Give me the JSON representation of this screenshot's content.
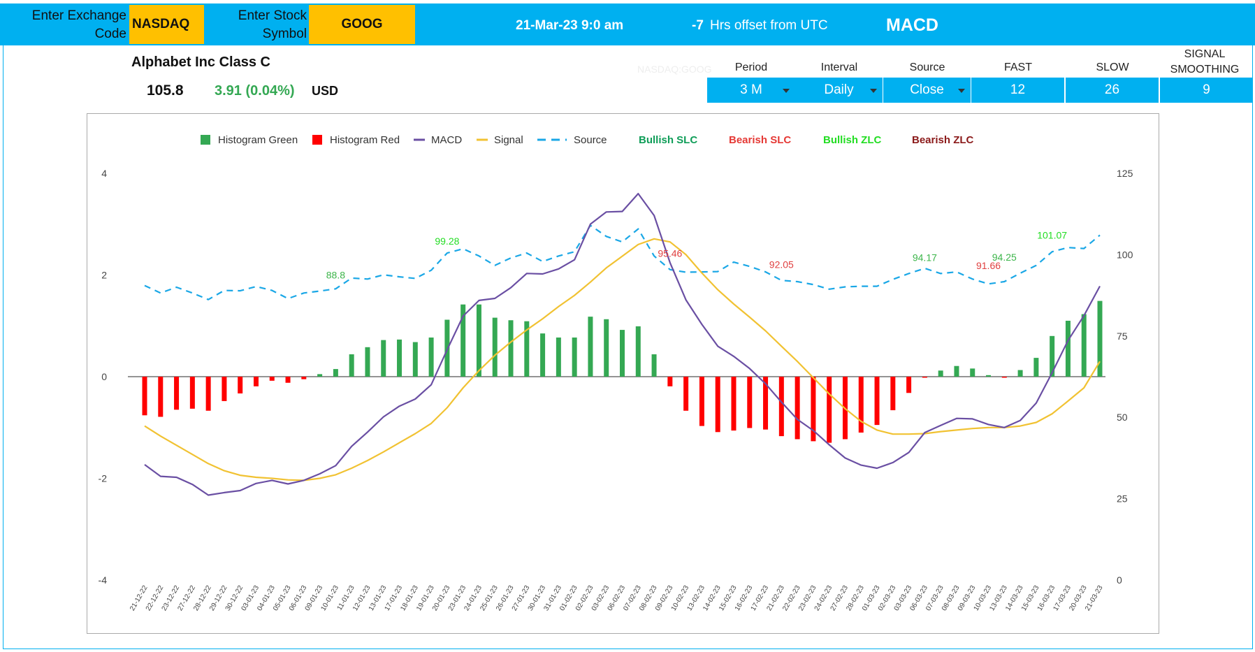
{
  "header": {
    "exchange_label": "Enter Exchange Code",
    "exchange_value": "NASDAQ",
    "symbol_label": "Enter Stock Symbol",
    "symbol_value": "GOOG",
    "datetime": "21-Mar-23 9:0 am",
    "utc_offset_value": "-7",
    "utc_offset_label": "Hrs offset from UTC",
    "title": "MACD"
  },
  "stock": {
    "name": "Alphabet Inc Class C",
    "price": "105.8",
    "change": "3.91 (0.04%)",
    "currency": "USD",
    "ticker_watermark": "NASDAQ:GOOG"
  },
  "controls": {
    "period_label": "Period",
    "period_value": "3 M",
    "interval_label": "Interval",
    "interval_value": "Daily",
    "source_label": "Source",
    "source_value": "Close",
    "fast_label": "FAST",
    "fast_value": "12",
    "slow_label": "SLOW",
    "slow_value": "26",
    "signal_label": "SIGNAL SMOOTHING",
    "signal_value": "9"
  },
  "colors": {
    "topbar": "#00b0f0",
    "input": "#ffc000",
    "hist_green": "#34a853",
    "hist_red": "#ff0000",
    "macd": "#6a4fa3",
    "signal": "#f1c232",
    "source": "#1aa7e6",
    "bullish_slc": "#0f9d58",
    "bearish_slc": "#e53935",
    "bullish_zlc": "#22dd22",
    "bearish_zlc": "#8b1a1a"
  },
  "chart_data": {
    "type": "line",
    "legend": [
      "Histogram Green",
      "Histogram Red",
      "MACD",
      "Signal",
      "Source",
      "Bullish SLC",
      "Bearish SLC",
      "Bullish ZLC",
      "Bearish ZLC"
    ],
    "legend_position": "top",
    "left_axis": {
      "ticks": [
        "4",
        "2",
        "0",
        "-2",
        "-4"
      ],
      "range": [
        -4,
        4
      ]
    },
    "right_axis": {
      "ticks": [
        "125",
        "100",
        "75",
        "50",
        "25",
        "0"
      ],
      "range": [
        0,
        125
      ]
    },
    "x": [
      "21-12-22",
      "22-12-22",
      "23-12-22",
      "27-12-22",
      "28-12-22",
      "29-12-22",
      "30-12-22",
      "03-01-23",
      "04-01-23",
      "05-01-23",
      "06-01-23",
      "09-01-23",
      "10-01-23",
      "11-01-23",
      "12-01-23",
      "13-01-23",
      "17-01-23",
      "18-01-23",
      "19-01-23",
      "20-01-23",
      "23-01-23",
      "24-01-23",
      "25-01-23",
      "26-01-23",
      "27-01-23",
      "30-01-23",
      "31-01-23",
      "01-02-23",
      "02-02-23",
      "03-02-23",
      "06-02-23",
      "07-02-23",
      "08-02-23",
      "09-02-23",
      "10-02-23",
      "13-02-23",
      "14-02-23",
      "15-02-23",
      "16-02-23",
      "17-02-23",
      "21-02-23",
      "22-02-23",
      "23-02-23",
      "24-02-23",
      "27-02-23",
      "28-02-23",
      "01-03-23",
      "02-03-23",
      "03-03-23",
      "06-03-23",
      "07-03-23",
      "08-03-23",
      "09-03-23",
      "10-03-23",
      "13-03-23",
      "14-03-23",
      "15-03-23",
      "16-03-23",
      "17-03-23",
      "20-03-23",
      "21-03-23"
    ],
    "series": [
      {
        "name": "Histogram Green",
        "values": [
          0,
          0,
          0,
          0,
          0,
          0,
          0,
          0,
          0,
          0,
          0,
          0.05,
          0.15,
          0.44,
          0.58,
          0.72,
          0.73,
          0.68,
          0.77,
          1.12,
          1.42,
          1.42,
          1.16,
          1.11,
          1.09,
          0.85,
          0.77,
          0.77,
          1.18,
          1.13,
          0.92,
          0.99,
          0.44,
          0,
          0,
          0,
          0,
          0,
          0,
          0,
          0,
          0,
          0,
          0,
          0,
          0,
          0,
          0,
          0,
          0,
          0.12,
          0.21,
          0.16,
          0.03,
          0,
          0.13,
          0.37,
          0.8,
          1.1,
          1.23,
          1.49
        ]
      },
      {
        "name": "Histogram Red",
        "values": [
          -0.76,
          -0.79,
          -0.65,
          -0.63,
          -0.67,
          -0.48,
          -0.33,
          -0.19,
          -0.08,
          -0.12,
          -0.05,
          0,
          0,
          0,
          0,
          0,
          0,
          0,
          0,
          0,
          0,
          0,
          0,
          0,
          0,
          0,
          0,
          0,
          0,
          0,
          0,
          0,
          0,
          -0.19,
          -0.67,
          -0.97,
          -1.09,
          -1.06,
          -1.01,
          -1.04,
          -1.17,
          -1.23,
          -1.27,
          -1.3,
          -1.23,
          -1.1,
          -0.95,
          -0.66,
          -0.32,
          -0.01,
          0,
          0,
          0,
          0,
          -0.01,
          0,
          0,
          0,
          0,
          0,
          0
        ]
      },
      {
        "name": "MACD",
        "values": [
          -1.73,
          -1.96,
          -1.98,
          -2.12,
          -2.33,
          -2.28,
          -2.24,
          -2.1,
          -2.04,
          -2.11,
          -2.04,
          -1.91,
          -1.75,
          -1.37,
          -1.09,
          -0.79,
          -0.58,
          -0.44,
          -0.16,
          0.53,
          1.19,
          1.5,
          1.54,
          1.75,
          2.03,
          2.02,
          2.12,
          2.3,
          3.0,
          3.24,
          3.25,
          3.6,
          3.17,
          2.24,
          1.51,
          1.03,
          0.6,
          0.4,
          0.16,
          -0.14,
          -0.5,
          -0.84,
          -1.06,
          -1.34,
          -1.6,
          -1.74,
          -1.8,
          -1.69,
          -1.49,
          -1.1,
          -0.96,
          -0.82,
          -0.83,
          -0.94,
          -1.0,
          -0.86,
          -0.52,
          0.08,
          0.71,
          1.2,
          1.78
        ]
      },
      {
        "name": "Signal",
        "values": [
          -0.97,
          -1.17,
          -1.35,
          -1.53,
          -1.71,
          -1.85,
          -1.94,
          -1.98,
          -2.0,
          -2.03,
          -2.04,
          -2.0,
          -1.93,
          -1.8,
          -1.65,
          -1.48,
          -1.3,
          -1.12,
          -0.92,
          -0.61,
          -0.22,
          0.12,
          0.42,
          0.68,
          0.92,
          1.14,
          1.38,
          1.6,
          1.86,
          2.14,
          2.37,
          2.6,
          2.71,
          2.65,
          2.4,
          2.04,
          1.71,
          1.43,
          1.17,
          0.9,
          0.6,
          0.3,
          -0.02,
          -0.34,
          -0.63,
          -0.88,
          -1.05,
          -1.13,
          -1.13,
          -1.12,
          -1.08,
          -1.05,
          -1.02,
          -1.0,
          -1.0,
          -0.97,
          -0.9,
          -0.73,
          -0.48,
          -0.22,
          0.3
        ]
      },
      {
        "name": "Source",
        "values": [
          90.5,
          88.2,
          90.0,
          88.2,
          86.2,
          89.0,
          88.9,
          90.2,
          89.0,
          86.5,
          88.2,
          88.8,
          89.5,
          92.8,
          92.5,
          93.8,
          93.2,
          92.7,
          95.2,
          100.5,
          101.8,
          99.6,
          96.7,
          99.0,
          100.5,
          97.9,
          99.6,
          100.9,
          109.0,
          105.6,
          103.9,
          107.9,
          99.6,
          95.4,
          94.6,
          94.7,
          94.8,
          97.7,
          96.4,
          94.7,
          92.1,
          91.7,
          90.8,
          89.4,
          90.1,
          90.3,
          90.3,
          92.4,
          94.2,
          95.8,
          94.2,
          94.7,
          92.5,
          91.0,
          91.7,
          94.3,
          96.7,
          100.9,
          102.2,
          101.9,
          106.0
        ]
      }
    ],
    "annotations": [
      {
        "label": "88.8",
        "x": "10-01-23",
        "y": 88.8,
        "type": "Bullish SLC"
      },
      {
        "label": "99.28",
        "x": "20-01-23",
        "y": 99.28,
        "type": "Bullish ZLC"
      },
      {
        "label": "95.46",
        "x": "09-02-23",
        "y": 95.46,
        "type": "Bearish SLC"
      },
      {
        "label": "92.05",
        "x": "21-02-23",
        "y": 92.05,
        "type": "Bearish SLC"
      },
      {
        "label": "94.17",
        "x": "06-03-23",
        "y": 94.17,
        "type": "Bullish SLC"
      },
      {
        "label": "91.66",
        "x": "10-03-23",
        "y": 91.66,
        "type": "Bearish SLC"
      },
      {
        "label": "94.25",
        "x": "13-03-23",
        "y": 94.25,
        "type": "Bullish SLC"
      },
      {
        "label": "101.07",
        "x": "16-03-23",
        "y": 101.07,
        "type": "Bullish ZLC"
      }
    ],
    "grid": false
  }
}
